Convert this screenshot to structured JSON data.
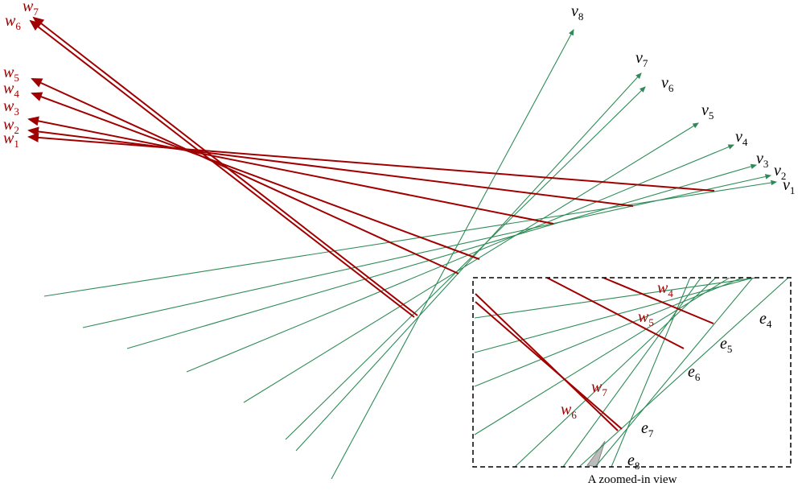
{
  "w_labels": [
    {
      "base": "w",
      "sub": "1"
    },
    {
      "base": "w",
      "sub": "2"
    },
    {
      "base": "w",
      "sub": "3"
    },
    {
      "base": "w",
      "sub": "4"
    },
    {
      "base": "w",
      "sub": "5"
    },
    {
      "base": "w",
      "sub": "6"
    },
    {
      "base": "w",
      "sub": "7"
    }
  ],
  "v_labels": [
    {
      "base": "v",
      "sub": "1"
    },
    {
      "base": "v",
      "sub": "2"
    },
    {
      "base": "v",
      "sub": "3"
    },
    {
      "base": "v",
      "sub": "4"
    },
    {
      "base": "v",
      "sub": "5"
    },
    {
      "base": "v",
      "sub": "6"
    },
    {
      "base": "v",
      "sub": "7"
    },
    {
      "base": "v",
      "sub": "8"
    }
  ],
  "inset": {
    "w_labels": [
      {
        "base": "w",
        "sub": "4"
      },
      {
        "base": "w",
        "sub": "5"
      },
      {
        "base": "w",
        "sub": "6"
      },
      {
        "base": "w",
        "sub": "7"
      }
    ],
    "e_labels": [
      {
        "base": "e",
        "sub": "4"
      },
      {
        "base": "e",
        "sub": "5"
      },
      {
        "base": "e",
        "sub": "6"
      },
      {
        "base": "e",
        "sub": "7"
      },
      {
        "base": "e",
        "sub": "8"
      }
    ],
    "caption": "A zoomed-in view"
  }
}
